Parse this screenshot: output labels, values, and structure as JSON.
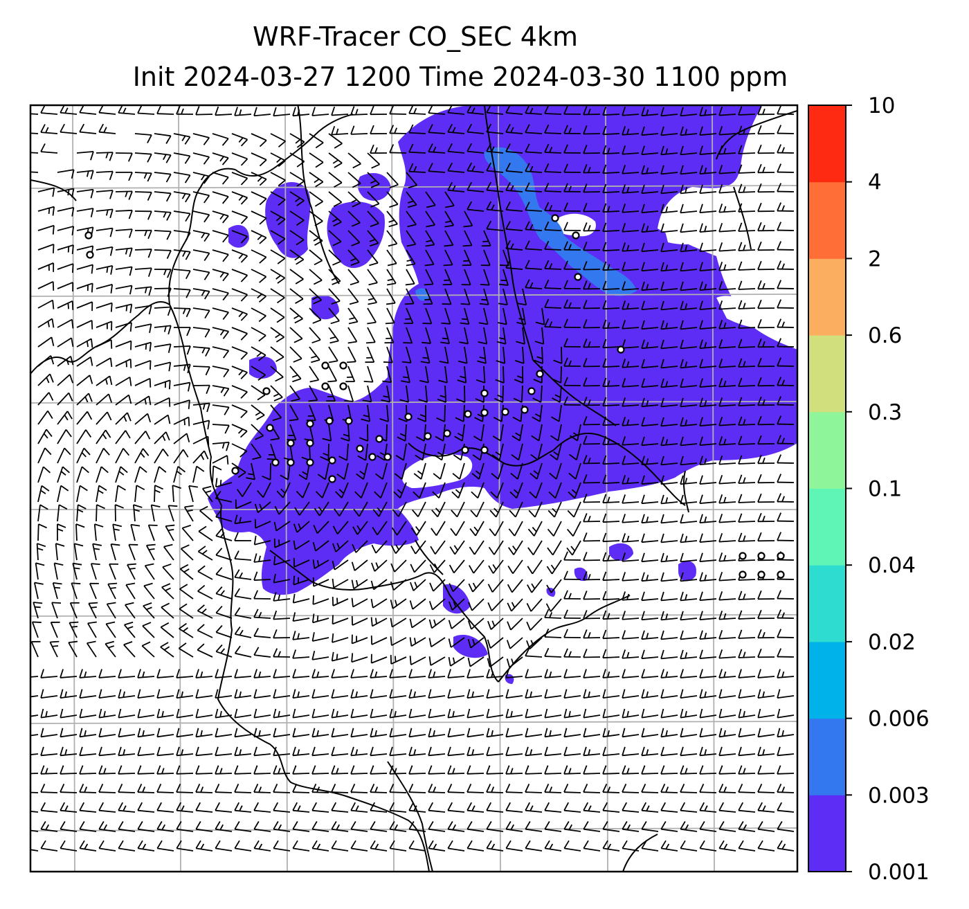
{
  "title": {
    "line1": "WRF-Tracer CO_SEC 4km",
    "line2": "Init 2024-03-27 1200 Time 2024-03-30 1100 ppm"
  },
  "colorbar": {
    "levels": [
      "0.001",
      "0.003",
      "0.006",
      "0.02",
      "0.04",
      "0.1",
      "0.3",
      "0.6",
      "2",
      "4",
      "10"
    ],
    "colors": [
      "#5e2df5",
      "#3478f0",
      "#00b2ea",
      "#2edcd0",
      "#5ff5b6",
      "#8ef59a",
      "#d1e07c",
      "#fbae5f",
      "#ff6e36",
      "#ff2a12"
    ]
  },
  "map": {
    "tracer_color": "#5e2df5",
    "tracer_dark_color": "#3478f0",
    "gridline_color": "#b0b0b0",
    "coastline_color": "#000000",
    "wind_barb_color": "#000000"
  }
}
